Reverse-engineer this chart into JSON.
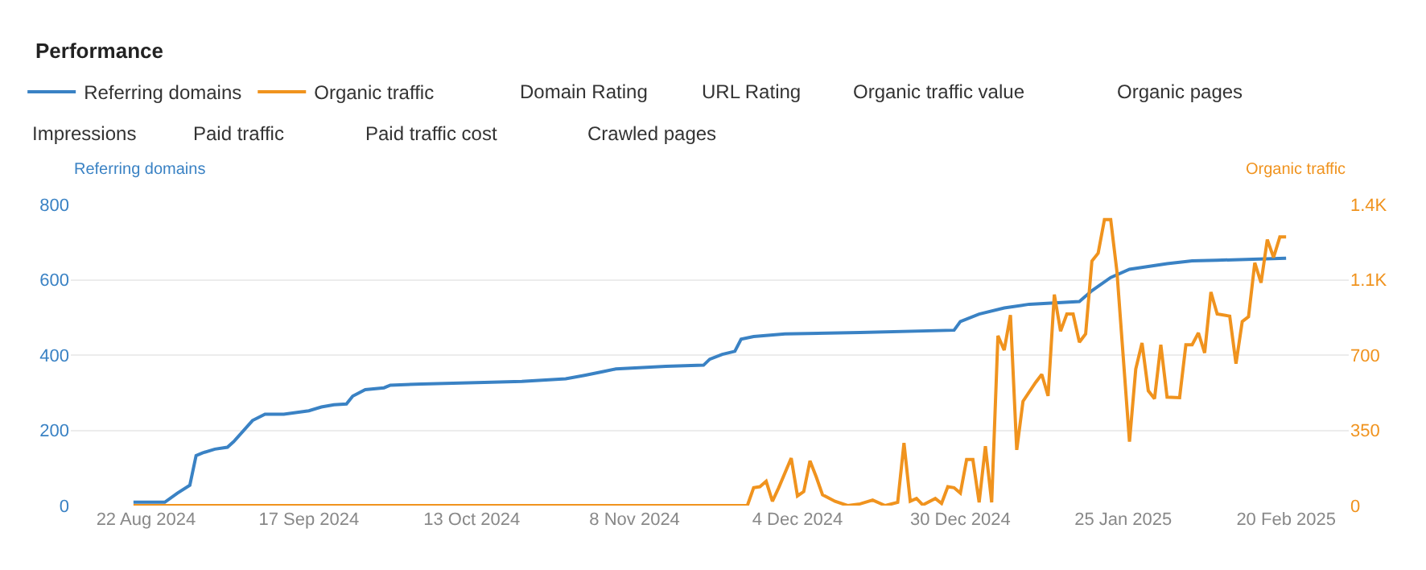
{
  "chart_data": {
    "type": "line",
    "title": "Performance",
    "annotations": [
      "Domain Rating",
      "URL Rating",
      "Organic traffic value",
      "Organic pages",
      "Impressions",
      "Paid traffic",
      "Paid traffic cost",
      "Crawled pages"
    ],
    "ylabel": "Referring domains",
    "y2label": "Organic traffic",
    "series": [
      {
        "name": "Referring domains",
        "color": "#3a82c4",
        "x": [
          "2024-08-20",
          "2024-08-25",
          "2024-08-27",
          "2024-08-29",
          "2024-08-30",
          "2024-08-31",
          "2024-09-02",
          "2024-09-04",
          "2024-09-05",
          "2024-09-08",
          "2024-09-10",
          "2024-09-13",
          "2024-09-17",
          "2024-09-19",
          "2024-09-21",
          "2024-09-23",
          "2024-09-24",
          "2024-09-26",
          "2024-09-29",
          "2024-09-30",
          "2024-10-05",
          "2024-10-15",
          "2024-10-21",
          "2024-10-28",
          "2024-10-31",
          "2024-11-03",
          "2024-11-05",
          "2024-11-13",
          "2024-11-19",
          "2024-11-20",
          "2024-11-22",
          "2024-11-24",
          "2024-11-25",
          "2024-11-27",
          "2024-12-02",
          "2024-12-14",
          "2024-12-29",
          "2024-12-30",
          "2025-01-02",
          "2025-01-06",
          "2025-01-10",
          "2025-01-18",
          "2025-01-20",
          "2025-01-23",
          "2025-01-26",
          "2025-02-01",
          "2025-02-05",
          "2025-02-09",
          "2025-02-20"
        ],
        "values": [
          9,
          9,
          33,
          54,
          133,
          140,
          150,
          155,
          170,
          226,
          243,
          243,
          252,
          262,
          268,
          270,
          291,
          308,
          313,
          320,
          323,
          327,
          330,
          337,
          346,
          356,
          363,
          370,
          373,
          389,
          402,
          410,
          442,
          449,
          456,
          460,
          466,
          489,
          509,
          525,
          535,
          542,
          571,
          606,
          628,
          643,
          650,
          652,
          657
        ]
      },
      {
        "name": "Organic traffic",
        "color": "#f0931e",
        "axis": "y2",
        "x": [
          "2024-08-20",
          "2024-11-26",
          "2024-11-27",
          "2024-11-28",
          "2024-11-29",
          "2024-11-30",
          "2024-12-01",
          "2024-12-03",
          "2024-12-04",
          "2024-12-05",
          "2024-12-06",
          "2024-12-07",
          "2024-12-08",
          "2024-12-10",
          "2024-12-12",
          "2024-12-14",
          "2024-12-16",
          "2024-12-18",
          "2024-12-20",
          "2024-12-21",
          "2024-12-22",
          "2024-12-23",
          "2024-12-24",
          "2024-12-26",
          "2024-12-27",
          "2024-12-28",
          "2024-12-29",
          "2024-12-30",
          "2024-12-31",
          "2025-01-01",
          "2025-01-02",
          "2025-01-03",
          "2025-01-04",
          "2025-01-05",
          "2025-01-06",
          "2025-01-07",
          "2025-01-08",
          "2025-01-09",
          "2025-01-11",
          "2025-01-12",
          "2025-01-13",
          "2025-01-14",
          "2025-01-15",
          "2025-01-16",
          "2025-01-17",
          "2025-01-18",
          "2025-01-19",
          "2025-01-20",
          "2025-01-21",
          "2025-01-22",
          "2025-01-23",
          "2025-01-24",
          "2025-01-26",
          "2025-01-27",
          "2025-01-28",
          "2025-01-29",
          "2025-01-30",
          "2025-01-31",
          "2025-02-01",
          "2025-02-03",
          "2025-02-04",
          "2025-02-05",
          "2025-02-06",
          "2025-02-07",
          "2025-02-08",
          "2025-02-09",
          "2025-02-11",
          "2025-02-12",
          "2025-02-13",
          "2025-02-14",
          "2025-02-15",
          "2025-02-16",
          "2025-02-17",
          "2025-02-18",
          "2025-02-19",
          "2025-02-20"
        ],
        "values": [
          0,
          0,
          83,
          88,
          113,
          20,
          83,
          221,
          45,
          65,
          208,
          133,
          50,
          20,
          0,
          8,
          26,
          0,
          15,
          291,
          20,
          33,
          3,
          33,
          10,
          88,
          83,
          58,
          214,
          214,
          15,
          276,
          15,
          790,
          723,
          886,
          259,
          485,
          572,
          610,
          510,
          981,
          811,
          891,
          891,
          760,
          798,
          1137,
          1174,
          1330,
          1330,
          1087,
          297,
          635,
          756,
          534,
          497,
          748,
          504,
          502,
          748,
          748,
          803,
          710,
          993,
          891,
          881,
          660,
          856,
          878,
          1129,
          1036,
          1237,
          1154,
          1249,
          1249
        ]
      }
    ],
    "xlim": [
      "2024-08-10",
      "2025-03-02"
    ],
    "xticks": [
      {
        "value": "2024-08-22",
        "label": "22 Aug 2024"
      },
      {
        "value": "2024-09-17",
        "label": "17 Sep 2024"
      },
      {
        "value": "2024-10-13",
        "label": "13 Oct 2024"
      },
      {
        "value": "2024-11-08",
        "label": "8 Nov 2024"
      },
      {
        "value": "2024-12-04",
        "label": "4 Dec 2024"
      },
      {
        "value": "2024-12-30",
        "label": "30 Dec 2024"
      },
      {
        "value": "2025-01-25",
        "label": "25 Jan 2025"
      },
      {
        "value": "2025-02-20",
        "label": "20 Feb 2025"
      }
    ],
    "ylim": [
      0,
      800
    ],
    "yticks": [
      0,
      200,
      400,
      600,
      800
    ],
    "y2lim": [
      0,
      1400
    ],
    "y2ticks": [
      0,
      350,
      700,
      {
        "value": 1050,
        "label": "1.1K"
      },
      {
        "value": 1400,
        "label": "1.4K"
      }
    ],
    "grid": "y",
    "legend": "top left",
    "marker": "none",
    "line_style": "solid"
  }
}
